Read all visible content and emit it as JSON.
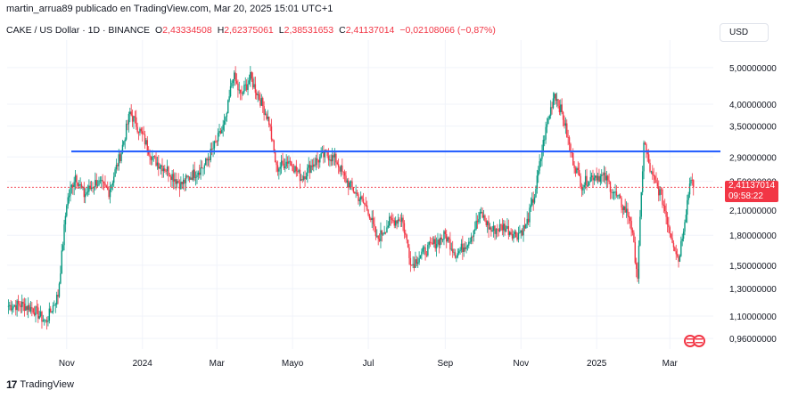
{
  "caption": "martin_arrua89 publicado en TradingView.com, Mar 20, 2025 15:01 UTC+1",
  "legend": {
    "symbol": "CAKE / US Dollar · 1D · BINANCE",
    "open_label": "O",
    "open": "2,43334508",
    "high_label": "H",
    "high": "2,62375061",
    "low_label": "L",
    "low": "2,38531653",
    "close_label": "C",
    "close": "2,41137014",
    "change": "−0,02108066 (−0,87%)"
  },
  "currency": "USD",
  "price_tag": {
    "price": "2,41137014",
    "countdown": "09:58:22"
  },
  "footer": {
    "brand": "TradingView",
    "brand_mark": "17"
  },
  "colors": {
    "up": "#089981",
    "down": "#f23645",
    "hline": "#2962ff",
    "last_price": "#f23645",
    "grid": "#f0f3fa"
  },
  "chart_data": {
    "type": "candlestick",
    "y_scale": "log",
    "ylim": [
      0.9,
      5.6
    ],
    "y_ticks": [
      "5,00000000",
      "4,00000000",
      "3,50000000",
      "2,90000000",
      "2,50000000",
      "2,10000000",
      "1,80000000",
      "1,50000000",
      "1,30000000",
      "1,10000000",
      "0,96000000"
    ],
    "y_tick_values": [
      5.0,
      4.0,
      3.5,
      2.9,
      2.5,
      2.1,
      1.8,
      1.5,
      1.3,
      1.1,
      0.96
    ],
    "x_ticks": [
      "Nov",
      "2024",
      "Mar",
      "Mayo",
      "Jul",
      "Sep",
      "Nov",
      "2025",
      "Mar"
    ],
    "x_tick_dates": [
      "2023-11-01",
      "2024-01-01",
      "2024-03-01",
      "2024-05-01",
      "2024-07-01",
      "2024-09-01",
      "2024-11-01",
      "2025-01-01",
      "2025-03-01"
    ],
    "x_range": [
      "2023-09-14",
      "2025-04-05"
    ],
    "horizontal_line": 3.0,
    "last_price": 2.41137014,
    "series": [
      {
        "date": "2023-09-15",
        "close": 1.17
      },
      {
        "date": "2023-09-25",
        "close": 1.18
      },
      {
        "date": "2023-10-05",
        "close": 1.15
      },
      {
        "date": "2023-10-15",
        "close": 1.06
      },
      {
        "date": "2023-10-25",
        "close": 1.25
      },
      {
        "date": "2023-11-01",
        "close": 2.2
      },
      {
        "date": "2023-11-08",
        "close": 2.6
      },
      {
        "date": "2023-11-15",
        "close": 2.3
      },
      {
        "date": "2023-11-25",
        "close": 2.5
      },
      {
        "date": "2023-12-05",
        "close": 2.35
      },
      {
        "date": "2023-12-15",
        "close": 3.0
      },
      {
        "date": "2023-12-22",
        "close": 3.8
      },
      {
        "date": "2024-01-01",
        "close": 3.3
      },
      {
        "date": "2024-01-10",
        "close": 2.85
      },
      {
        "date": "2024-01-20",
        "close": 2.7
      },
      {
        "date": "2024-02-01",
        "close": 2.45
      },
      {
        "date": "2024-02-10",
        "close": 2.6
      },
      {
        "date": "2024-02-20",
        "close": 2.75
      },
      {
        "date": "2024-03-01",
        "close": 3.2
      },
      {
        "date": "2024-03-08",
        "close": 3.6
      },
      {
        "date": "2024-03-14",
        "close": 4.8
      },
      {
        "date": "2024-03-20",
        "close": 4.2
      },
      {
        "date": "2024-03-28",
        "close": 4.7
      },
      {
        "date": "2024-04-05",
        "close": 4.1
      },
      {
        "date": "2024-04-12",
        "close": 3.6
      },
      {
        "date": "2024-04-18",
        "close": 2.7
      },
      {
        "date": "2024-04-28",
        "close": 2.85
      },
      {
        "date": "2024-05-08",
        "close": 2.55
      },
      {
        "date": "2024-05-18",
        "close": 2.8
      },
      {
        "date": "2024-05-28",
        "close": 2.95
      },
      {
        "date": "2024-06-05",
        "close": 2.85
      },
      {
        "date": "2024-06-12",
        "close": 2.55
      },
      {
        "date": "2024-06-22",
        "close": 2.3
      },
      {
        "date": "2024-07-01",
        "close": 2.1
      },
      {
        "date": "2024-07-08",
        "close": 1.75
      },
      {
        "date": "2024-07-18",
        "close": 1.95
      },
      {
        "date": "2024-07-28",
        "close": 2.0
      },
      {
        "date": "2024-08-05",
        "close": 1.5
      },
      {
        "date": "2024-08-12",
        "close": 1.6
      },
      {
        "date": "2024-08-22",
        "close": 1.7
      },
      {
        "date": "2024-09-01",
        "close": 1.8
      },
      {
        "date": "2024-09-10",
        "close": 1.6
      },
      {
        "date": "2024-09-20",
        "close": 1.75
      },
      {
        "date": "2024-09-30",
        "close": 2.05
      },
      {
        "date": "2024-10-08",
        "close": 1.85
      },
      {
        "date": "2024-10-18",
        "close": 1.9
      },
      {
        "date": "2024-10-28",
        "close": 1.8
      },
      {
        "date": "2024-11-05",
        "close": 1.9
      },
      {
        "date": "2024-11-12",
        "close": 2.3
      },
      {
        "date": "2024-11-20",
        "close": 3.3
      },
      {
        "date": "2024-11-28",
        "close": 4.3
      },
      {
        "date": "2024-12-05",
        "close": 3.7
      },
      {
        "date": "2024-12-12",
        "close": 2.9
      },
      {
        "date": "2024-12-20",
        "close": 2.45
      },
      {
        "date": "2024-12-30",
        "close": 2.6
      },
      {
        "date": "2025-01-08",
        "close": 2.55
      },
      {
        "date": "2025-01-18",
        "close": 2.25
      },
      {
        "date": "2025-01-28",
        "close": 2.0
      },
      {
        "date": "2025-02-03",
        "close": 1.4
      },
      {
        "date": "2025-02-08",
        "close": 3.2
      },
      {
        "date": "2025-02-14",
        "close": 2.6
      },
      {
        "date": "2025-02-22",
        "close": 2.3
      },
      {
        "date": "2025-03-01",
        "close": 1.85
      },
      {
        "date": "2025-03-08",
        "close": 1.55
      },
      {
        "date": "2025-03-14",
        "close": 2.1
      },
      {
        "date": "2025-03-18",
        "close": 2.6
      },
      {
        "date": "2025-03-20",
        "close": 2.41
      }
    ]
  }
}
